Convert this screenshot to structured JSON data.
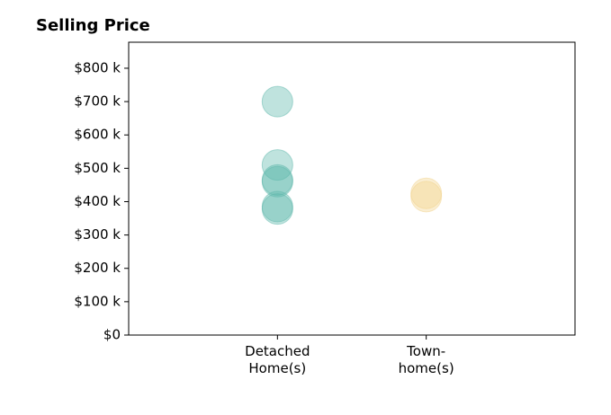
{
  "chart_data": {
    "type": "scatter",
    "title": "Selling Price",
    "categories": [
      "Detached\nHome(s)",
      "Town-\nhome(s)"
    ],
    "xlim": [
      -1,
      2
    ],
    "series": [
      {
        "color": "#5fb8ac",
        "values": [
          700000,
          510000,
          465000,
          460000,
          385000,
          378000
        ]
      },
      {
        "color": "#f2d48e",
        "values": [
          425000,
          415000
        ]
      }
    ],
    "ylim": [
      0,
      878000
    ],
    "yticks": [
      {
        "value": 0,
        "label": "$0"
      },
      {
        "value": 100000,
        "label": "$100 k"
      },
      {
        "value": 200000,
        "label": "$200 k"
      },
      {
        "value": 300000,
        "label": "$300 k"
      },
      {
        "value": 400000,
        "label": "$400 k"
      },
      {
        "value": 500000,
        "label": "$500 k"
      },
      {
        "value": 600000,
        "label": "$600 k"
      },
      {
        "value": 700000,
        "label": "$700 k"
      },
      {
        "value": 800000,
        "label": "$800 k"
      }
    ],
    "grid": false
  }
}
